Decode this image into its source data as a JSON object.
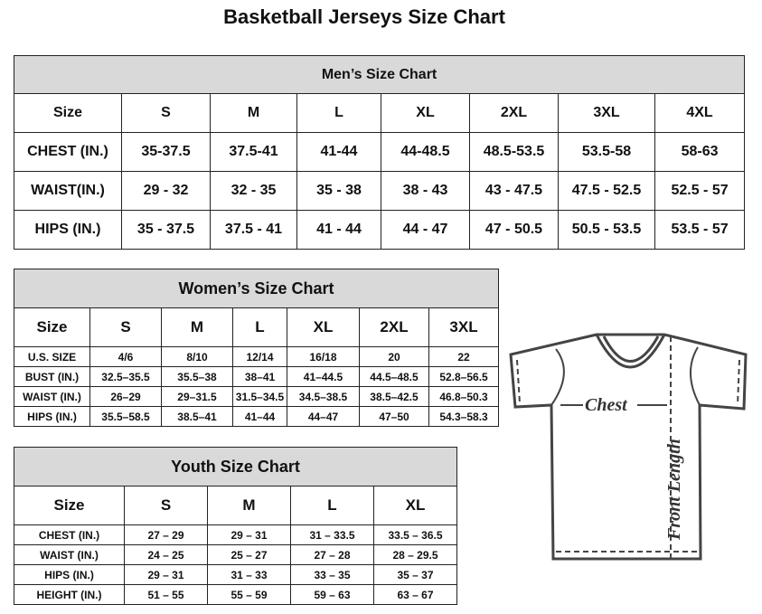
{
  "title": "Basketball Jerseys Size Chart",
  "men": {
    "title": "Men’s Size Chart",
    "header": [
      "Size",
      "S",
      "M",
      "L",
      "XL",
      "2XL",
      "3XL",
      "4XL"
    ],
    "rows": [
      [
        "CHEST (IN.)",
        "35-37.5",
        "37.5-41",
        "41-44",
        "44-48.5",
        "48.5-53.5",
        "53.5-58",
        "58-63"
      ],
      [
        "WAIST(IN.)",
        "29 - 32",
        "32 - 35",
        "35 - 38",
        "38 - 43",
        "43 - 47.5",
        "47.5 - 52.5",
        "52.5 - 57"
      ],
      [
        "HIPS (IN.)",
        "35 - 37.5",
        "37.5 - 41",
        "41 - 44",
        "44 - 47",
        "47 - 50.5",
        "50.5 - 53.5",
        "53.5 - 57"
      ]
    ]
  },
  "women": {
    "title": "Women’s Size Chart",
    "header": [
      "Size",
      "S",
      "M",
      "L",
      "XL",
      "2XL",
      "3XL"
    ],
    "rows": [
      [
        "U.S. SIZE",
        "4/6",
        "8/10",
        "12/14",
        "16/18",
        "20",
        "22"
      ],
      [
        "BUST (IN.)",
        "32.5–35.5",
        "35.5–38",
        "38–41",
        "41–44.5",
        "44.5–48.5",
        "52.8–56.5"
      ],
      [
        "WAIST (IN.)",
        "26–29",
        "29–31.5",
        "31.5–34.5",
        "34.5–38.5",
        "38.5–42.5",
        "46.8–50.3"
      ],
      [
        "HIPS (IN.)",
        "35.5–58.5",
        "38.5–41",
        "41–44",
        "44–47",
        "47–50",
        "54.3–58.3"
      ]
    ]
  },
  "youth": {
    "title": "Youth Size Chart",
    "header": [
      "Size",
      "S",
      "M",
      "L",
      "XL"
    ],
    "rows": [
      [
        "CHEST (IN.)",
        "27 – 29",
        "29 – 31",
        "31 – 33.5",
        "33.5 – 36.5"
      ],
      [
        "WAIST (IN.)",
        "24 – 25",
        "25 – 27",
        "27 – 28",
        "28 – 29.5"
      ],
      [
        "HIPS (IN.)",
        "29 – 31",
        "31 – 33",
        "33 – 35",
        "35 – 37"
      ],
      [
        "HEIGHT (IN.)",
        "51 – 55",
        "55 – 59",
        "59 – 63",
        "63 – 67"
      ]
    ]
  },
  "diagram": {
    "chest_label": "Chest",
    "length_label": "Front Length"
  }
}
